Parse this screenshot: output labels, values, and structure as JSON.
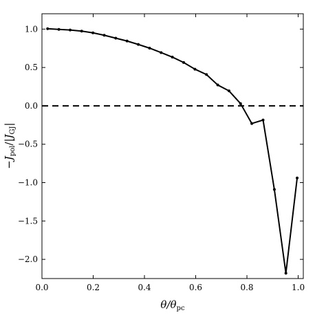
{
  "chart_data": {
    "type": "line",
    "xlabel": "θ/θ_pc",
    "ylabel": "−J_pol/|J_GJ|",
    "xlim": [
      0.0,
      1.02
    ],
    "ylim": [
      -2.25,
      1.2
    ],
    "xticks": [
      "0.0",
      "0.2",
      "0.4",
      "0.6",
      "0.8",
      "1.0"
    ],
    "yticks": [
      "1.0",
      "0.5",
      "0.0",
      "−0.5",
      "−1.0",
      "−1.5",
      "−2.0"
    ],
    "grid": false,
    "legend": "none",
    "reference_line": {
      "y": 0.0,
      "style": "dashed"
    },
    "series": [
      {
        "x": [
          0.022,
          0.066,
          0.11,
          0.155,
          0.199,
          0.243,
          0.288,
          0.332,
          0.376,
          0.42,
          0.465,
          0.509,
          0.553,
          0.597,
          0.642,
          0.686,
          0.73,
          0.775,
          0.819,
          0.863,
          0.907,
          0.952,
          0.996
        ],
        "y": [
          1.005,
          0.996,
          0.988,
          0.974,
          0.951,
          0.92,
          0.882,
          0.845,
          0.8,
          0.752,
          0.694,
          0.635,
          0.565,
          0.478,
          0.408,
          0.272,
          0.195,
          0.03,
          -0.23,
          -0.185,
          -1.09,
          -2.18,
          -0.94
        ]
      }
    ]
  }
}
